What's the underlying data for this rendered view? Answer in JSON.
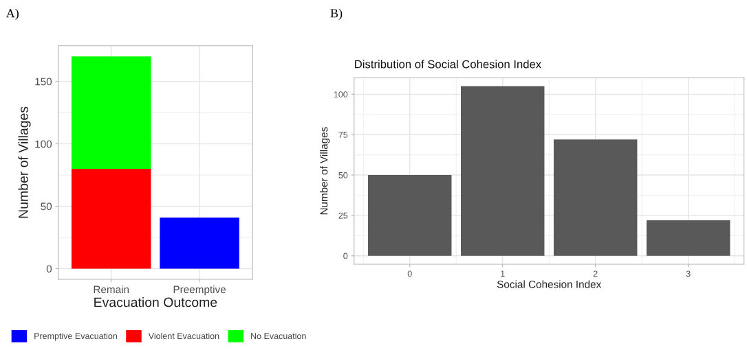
{
  "chart_data": [
    {
      "type": "bar",
      "stacked": true,
      "annotations": [
        "A)"
      ],
      "xlabel": "Evacuation Outcome",
      "ylabel": "Number of Villages",
      "categories": [
        "Remain",
        "Preemptive"
      ],
      "series": [
        {
          "name": "Premptive Evacuation",
          "color": "#0000ff",
          "values": [
            0,
            41
          ]
        },
        {
          "name": "Violent Evacuation",
          "color": "#ff0000",
          "values": [
            80,
            0
          ]
        },
        {
          "name": "No Evacuation",
          "color": "#00ff00",
          "values": [
            90,
            0
          ]
        }
      ],
      "ylim": [
        -8.5,
        178.5
      ],
      "yticks": [
        0,
        50,
        100,
        150
      ],
      "grid": true,
      "legend": "bottom"
    },
    {
      "type": "bar",
      "annotations": [
        "B)"
      ],
      "title": "Distribution of Social Cohesion Index",
      "xlabel": "Social Cohesion Index",
      "ylabel": "Number of Villages",
      "categories": [
        "0",
        "1",
        "2",
        "3"
      ],
      "values": [
        50,
        105,
        72,
        22
      ],
      "color": "#595959",
      "ylim": [
        -5.25,
        110.25
      ],
      "yticks": [
        0,
        25,
        50,
        75,
        100
      ],
      "grid": true
    }
  ]
}
